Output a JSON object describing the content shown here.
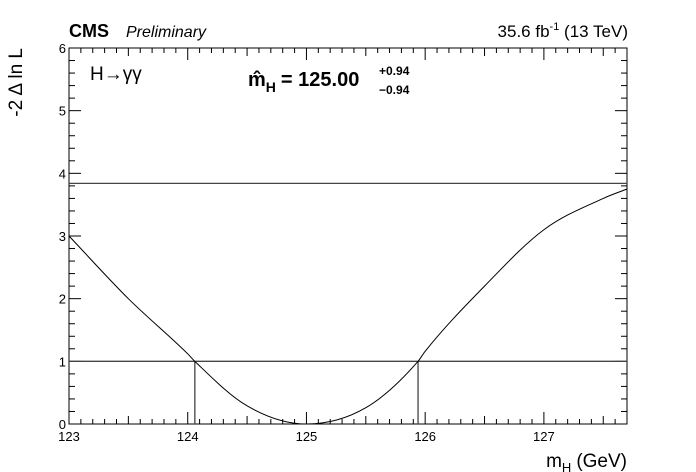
{
  "header": {
    "experiment": "CMS",
    "status": "Preliminary",
    "lumi_value": "35.6 fb",
    "lumi_exp": "-1",
    "energy": " (13 TeV)"
  },
  "annotation": {
    "process": "H→γγ",
    "fit_symbol": "m̂",
    "fit_sub": "H",
    "fit_value": "= 125.00",
    "err_up": "+0.94",
    "err_down": "−0.94"
  },
  "chart_data": {
    "type": "line",
    "xlabel": "m",
    "xlabel_sub": "H",
    "xlabel_unit": "(GeV)",
    "ylabel": "-2 Δ ln L",
    "xlim": [
      123.0,
      127.7
    ],
    "ylim": [
      0,
      6
    ],
    "x_ticks": [
      "123",
      "124",
      "125",
      "126",
      "127"
    ],
    "y_ticks": [
      "0",
      "1",
      "2",
      "3",
      "4",
      "5",
      "6"
    ],
    "grid": false,
    "series": [
      {
        "x": [
          123.0,
          123.5,
          124.0,
          124.06,
          124.5,
          125.0,
          125.5,
          125.94,
          126.0,
          126.5,
          127.0,
          127.5,
          127.7
        ],
        "y": [
          3.0,
          2.0,
          1.12,
          1.0,
          0.29,
          0.0,
          0.26,
          1.0,
          1.16,
          2.2,
          3.1,
          3.6,
          3.75
        ]
      }
    ],
    "hlines": [
      1.0,
      3.84
    ],
    "interval": [
      124.06,
      125.94
    ],
    "line_color": "#000000"
  }
}
